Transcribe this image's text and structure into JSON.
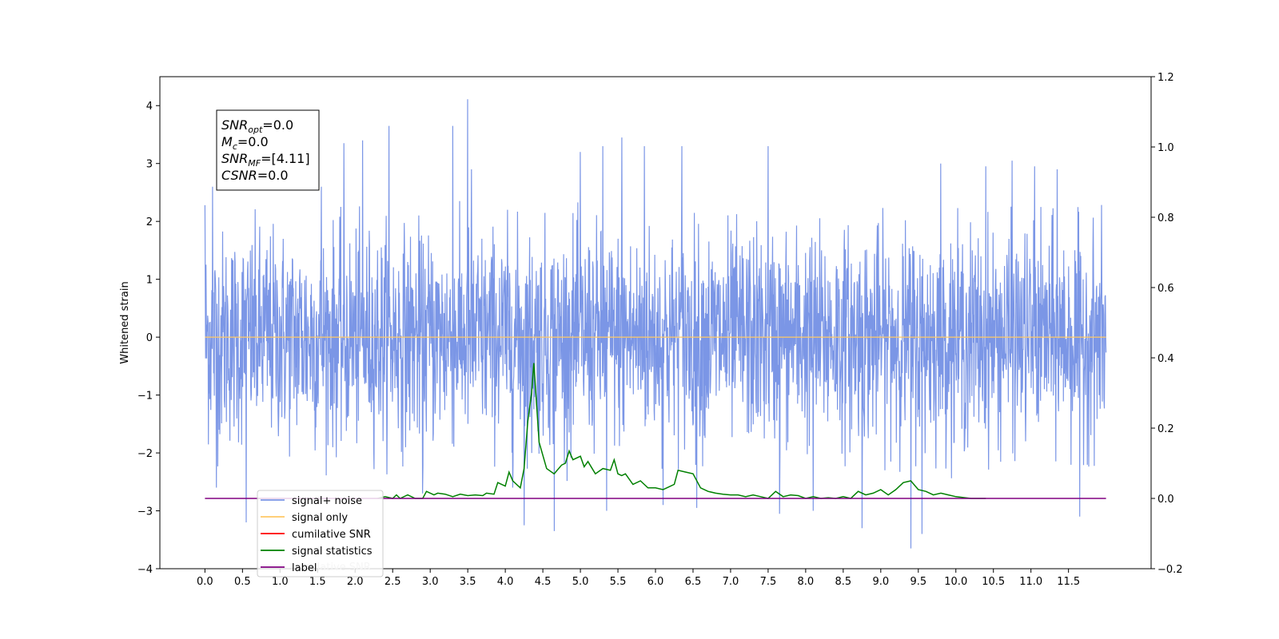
{
  "chart_data": {
    "type": "line",
    "ylabel": "Whitened strain",
    "xlim": [
      -0.6,
      12.6
    ],
    "ylim": [
      -4,
      4.5
    ],
    "y2lim": [
      -0.2,
      1.2
    ],
    "x_ticks": [
      0.0,
      0.5,
      1.0,
      1.5,
      2.0,
      2.5,
      3.0,
      3.5,
      4.0,
      4.5,
      5.0,
      5.5,
      6.0,
      6.5,
      7.0,
      7.5,
      8.0,
      8.5,
      9.0,
      9.5,
      10.0,
      10.5,
      11.0,
      11.5
    ],
    "x_tick_labels": [
      "0.0",
      "0.5",
      "1.0",
      "1.5",
      "2.0",
      "2.5",
      "3.0",
      "3.5",
      "4.0",
      "4.5",
      "5.0",
      "5.5",
      "6.0",
      "6.5",
      "7.0",
      "7.5",
      "8.0",
      "8.5",
      "9.0",
      "9.5",
      "10.0",
      "10.5",
      "11.0",
      "11.5"
    ],
    "y_ticks": [
      -4,
      -3,
      -2,
      -1,
      0,
      1,
      2,
      3,
      4
    ],
    "y_tick_labels": [
      "−4",
      "−3",
      "−2",
      "−1",
      "0",
      "1",
      "2",
      "3",
      "4"
    ],
    "y2_ticks": [
      -0.2,
      0.0,
      0.2,
      0.4,
      0.6,
      0.8,
      1.0,
      1.2
    ],
    "y2_tick_labels": [
      "−0.2",
      "0.0",
      "0.2",
      "0.4",
      "0.6",
      "0.8",
      "1.0",
      "1.2"
    ],
    "annotation": {
      "lines": [
        {
          "base": "SNR",
          "sub": "opt",
          "rest": "=0.0"
        },
        {
          "base": "M",
          "sub": "c",
          "rest": "=0.0"
        },
        {
          "base": "SNR",
          "sub": "MF",
          "rest": "=[4.11]"
        },
        {
          "base": "CSNR",
          "sub": "",
          "rest": "=0.0"
        }
      ]
    },
    "legend": {
      "placement": "lower-left",
      "hidden_text": "cumilative SNR",
      "entries": [
        {
          "label": "signal+ noise",
          "color": "#7b96e6"
        },
        {
          "label": "signal only",
          "color": "#ffc864"
        },
        {
          "label": "cumilative SNR",
          "color": "#ff0000"
        },
        {
          "label": "signal statistics",
          "color": "#008000"
        },
        {
          "label": "label",
          "color": "#800080"
        }
      ]
    },
    "series": [
      {
        "name": "signal+ noise",
        "axis": "left",
        "color": "#7b96e6",
        "x_range": [
          0.0,
          12.0
        ],
        "envelope_typical": [
          -1.5,
          1.5
        ],
        "peaks": [
          {
            "x": 0.0,
            "y": 2.28
          },
          {
            "x": 0.1,
            "y": 2.6
          },
          {
            "x": 0.15,
            "y": -2.6
          },
          {
            "x": 0.55,
            "y": -3.2
          },
          {
            "x": 1.55,
            "y": 2.6
          },
          {
            "x": 1.85,
            "y": 3.35
          },
          {
            "x": 2.1,
            "y": 3.4
          },
          {
            "x": 2.45,
            "y": 3.65
          },
          {
            "x": 2.9,
            "y": -2.7
          },
          {
            "x": 3.3,
            "y": 3.65
          },
          {
            "x": 3.5,
            "y": 4.11
          },
          {
            "x": 3.55,
            "y": 2.9
          },
          {
            "x": 4.1,
            "y": -2.6
          },
          {
            "x": 4.25,
            "y": -3.25
          },
          {
            "x": 4.35,
            "y": -2.0
          },
          {
            "x": 4.65,
            "y": -3.35
          },
          {
            "x": 5.0,
            "y": 3.2
          },
          {
            "x": 5.3,
            "y": 3.3
          },
          {
            "x": 5.35,
            "y": -3.0
          },
          {
            "x": 5.55,
            "y": 3.45
          },
          {
            "x": 5.85,
            "y": 3.3
          },
          {
            "x": 6.1,
            "y": -2.9
          },
          {
            "x": 6.35,
            "y": 3.3
          },
          {
            "x": 6.55,
            "y": -2.95
          },
          {
            "x": 7.5,
            "y": 3.3
          },
          {
            "x": 7.65,
            "y": -3.05
          },
          {
            "x": 8.1,
            "y": -3.0
          },
          {
            "x": 8.75,
            "y": 3.35
          },
          {
            "x": 8.75,
            "y": -3.3
          },
          {
            "x": 9.4,
            "y": -3.65
          },
          {
            "x": 9.55,
            "y": -3.4
          },
          {
            "x": 9.8,
            "y": 3.0
          },
          {
            "x": 10.4,
            "y": 2.95
          },
          {
            "x": 10.75,
            "y": 3.05
          },
          {
            "x": 11.05,
            "y": 2.95
          },
          {
            "x": 11.35,
            "y": 2.9
          },
          {
            "x": 11.65,
            "y": -3.1
          }
        ]
      },
      {
        "name": "signal only",
        "axis": "left",
        "color": "#ffc864",
        "x": [
          0.0,
          12.0
        ],
        "y": [
          0.0,
          0.0
        ]
      },
      {
        "name": "signal statistics",
        "axis": "right",
        "color": "#008000",
        "x": [
          2.3,
          2.4,
          2.5,
          2.55,
          2.6,
          2.7,
          2.8,
          2.9,
          2.95,
          3.05,
          3.1,
          3.2,
          3.3,
          3.4,
          3.5,
          3.6,
          3.7,
          3.75,
          3.85,
          3.9,
          4.0,
          4.05,
          4.1,
          4.2,
          4.25,
          4.3,
          4.35,
          4.38,
          4.45,
          4.55,
          4.65,
          4.75,
          4.8,
          4.85,
          4.9,
          5.0,
          5.05,
          5.1,
          5.2,
          5.3,
          5.4,
          5.45,
          5.5,
          5.55,
          5.6,
          5.7,
          5.8,
          5.9,
          6.0,
          6.1,
          6.15,
          6.25,
          6.3,
          6.4,
          6.5,
          6.6,
          6.7,
          6.8,
          6.9,
          7.0,
          7.1,
          7.2,
          7.3,
          7.4,
          7.5,
          7.6,
          7.7,
          7.8,
          7.9,
          8.0,
          8.1,
          8.2,
          8.3,
          8.4,
          8.5,
          8.6,
          8.7,
          8.8,
          8.9,
          9.0,
          9.1,
          9.2,
          9.3,
          9.4,
          9.5,
          9.6,
          9.7,
          9.8,
          9.9,
          10.0,
          10.2,
          10.4
        ],
        "y": [
          0.0,
          0.005,
          0.0,
          0.01,
          0.0,
          0.01,
          0.0,
          0.0,
          0.02,
          0.01,
          0.015,
          0.012,
          0.005,
          0.012,
          0.008,
          0.01,
          0.008,
          0.015,
          0.012,
          0.045,
          0.035,
          0.075,
          0.05,
          0.03,
          0.085,
          0.22,
          0.3,
          0.385,
          0.16,
          0.085,
          0.07,
          0.095,
          0.1,
          0.135,
          0.11,
          0.12,
          0.09,
          0.105,
          0.07,
          0.085,
          0.08,
          0.11,
          0.07,
          0.065,
          0.07,
          0.04,
          0.05,
          0.03,
          0.03,
          0.025,
          0.03,
          0.04,
          0.08,
          0.075,
          0.07,
          0.03,
          0.02,
          0.015,
          0.012,
          0.01,
          0.01,
          0.005,
          0.01,
          0.005,
          0.0,
          0.02,
          0.005,
          0.01,
          0.008,
          0.0,
          0.005,
          0.0,
          0.002,
          0.0,
          0.005,
          0.0,
          0.02,
          0.01,
          0.015,
          0.025,
          0.01,
          0.025,
          0.045,
          0.05,
          0.025,
          0.02,
          0.01,
          0.015,
          0.01,
          0.005,
          0.0,
          0.0
        ]
      },
      {
        "name": "label",
        "axis": "right",
        "color": "#800080",
        "x": [
          0.0,
          12.0
        ],
        "y": [
          0.0,
          0.0
        ]
      }
    ]
  }
}
